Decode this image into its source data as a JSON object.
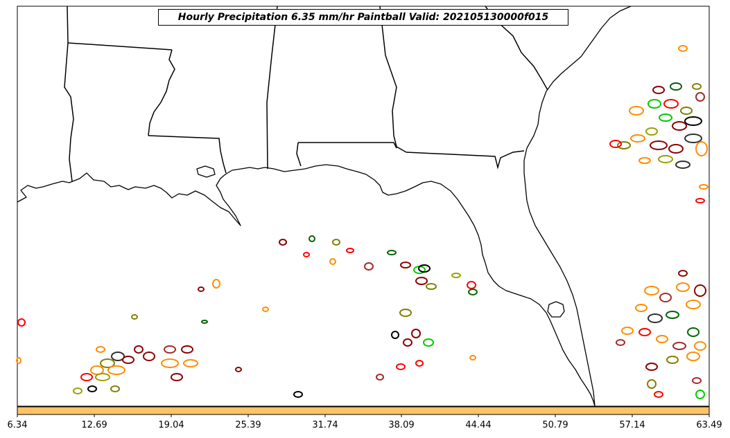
{
  "map": {
    "title": "Hourly Precipitation 6.35 mm/hr Paintball Valid: 202105130000f015",
    "region": "Southeastern United States and Gulf of Mexico",
    "colorbar": {
      "ticks": [
        "6.34",
        "12.69",
        "19.04",
        "25.39",
        "31.74",
        "38.09",
        "44.44",
        "50.79",
        "57.14",
        "63.49"
      ],
      "fill_color": "#ffc266"
    },
    "member_colors": [
      "#ff0000",
      "#8b0000",
      "#ff8c00",
      "#808000",
      "#006400",
      "#00cc00",
      "#000000",
      "#2f2f2f",
      "#a52a2a",
      "#b22222",
      "#ffa500",
      "#9aa000"
    ]
  }
}
